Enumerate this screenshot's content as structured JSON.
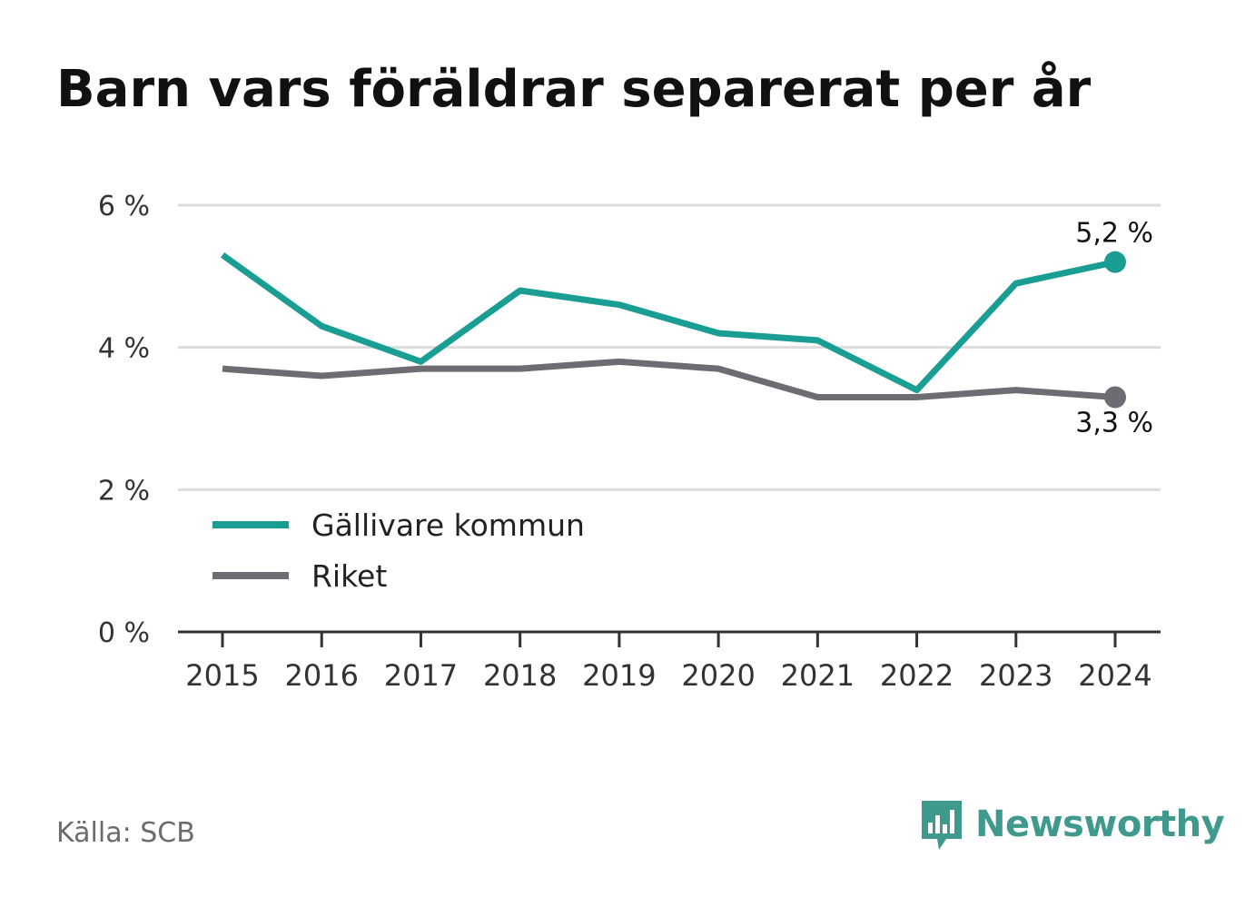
{
  "title": "Barn vars föräldrar separerat per år",
  "source": "Källa: SCB",
  "brand": {
    "name": "Newsworthy",
    "icon": "newsworthy-logo-icon",
    "color": "#3f9a8d"
  },
  "chart_data": {
    "type": "line",
    "x": [
      "2015",
      "2016",
      "2017",
      "2018",
      "2019",
      "2020",
      "2021",
      "2022",
      "2023",
      "2024"
    ],
    "ylim": [
      0,
      6
    ],
    "yticks": [
      0,
      2,
      4,
      6
    ],
    "ytick_labels": [
      "0 %",
      "2 %",
      "4 %",
      "6 %"
    ],
    "grid": true,
    "legend_position": "bottom-left",
    "series": [
      {
        "name": "Gällivare kommun",
        "color": "#1a9e94",
        "values": [
          5.3,
          4.3,
          3.8,
          4.8,
          4.6,
          4.2,
          4.1,
          3.4,
          4.9,
          5.2
        ],
        "end_label": "5,2 %"
      },
      {
        "name": "Riket",
        "color": "#6d6c72",
        "values": [
          3.7,
          3.6,
          3.7,
          3.7,
          3.8,
          3.7,
          3.3,
          3.3,
          3.4,
          3.3
        ],
        "end_label": "3,3 %"
      }
    ]
  }
}
